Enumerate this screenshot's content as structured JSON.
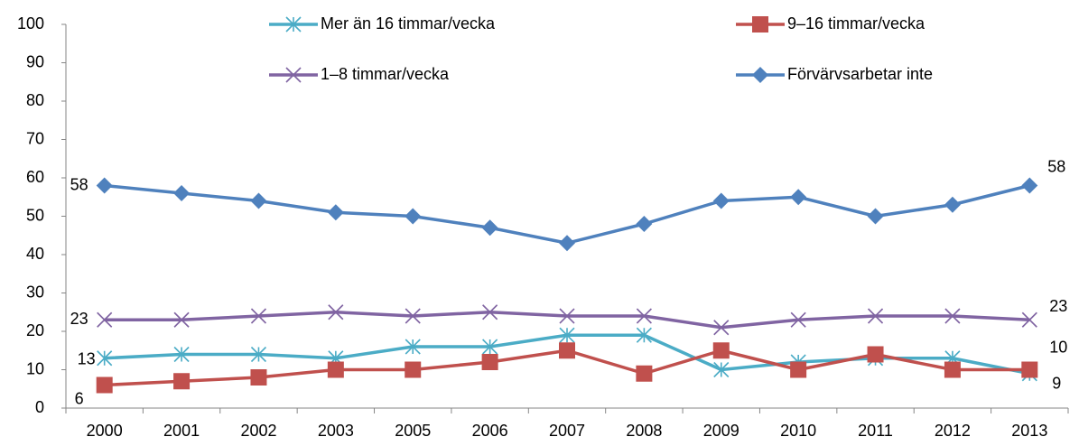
{
  "chart_data": {
    "type": "line",
    "categories": [
      "2000",
      "2001",
      "2002",
      "2003",
      "2005",
      "2006",
      "2007",
      "2008",
      "2009",
      "2010",
      "2011",
      "2012",
      "2013"
    ],
    "ylim": [
      0,
      100
    ],
    "yticks": [
      0,
      10,
      20,
      30,
      40,
      50,
      60,
      70,
      80,
      90,
      100
    ],
    "grid": false,
    "legend": "top",
    "series": [
      {
        "name": "Mer än 16 timmar/vecka",
        "color": "#4bacc6",
        "marker": "asterisk",
        "labeled_indices": [
          0,
          12
        ],
        "values": [
          13,
          14,
          14,
          13,
          16,
          16,
          19,
          19,
          10,
          12,
          13,
          13,
          9
        ]
      },
      {
        "name": "9–16 timmar/vecka",
        "color": "#c0504d",
        "marker": "square",
        "labeled_indices": [
          0,
          12
        ],
        "values": [
          6,
          7,
          8,
          10,
          10,
          12,
          15,
          9,
          15,
          10,
          14,
          10,
          10
        ]
      },
      {
        "name": "1–8 timmar/vecka",
        "color": "#8064a2",
        "marker": "x",
        "labeled_indices": [
          0,
          12
        ],
        "values": [
          23,
          23,
          24,
          25,
          24,
          25,
          24,
          24,
          21,
          23,
          24,
          24,
          23
        ]
      },
      {
        "name": "Förvärvsarbetar inte",
        "color": "#4f81bd",
        "marker": "diamond",
        "labeled_indices": [
          0,
          12
        ],
        "values": [
          58,
          56,
          54,
          51,
          50,
          47,
          43,
          48,
          54,
          55,
          50,
          53,
          58
        ]
      }
    ]
  }
}
